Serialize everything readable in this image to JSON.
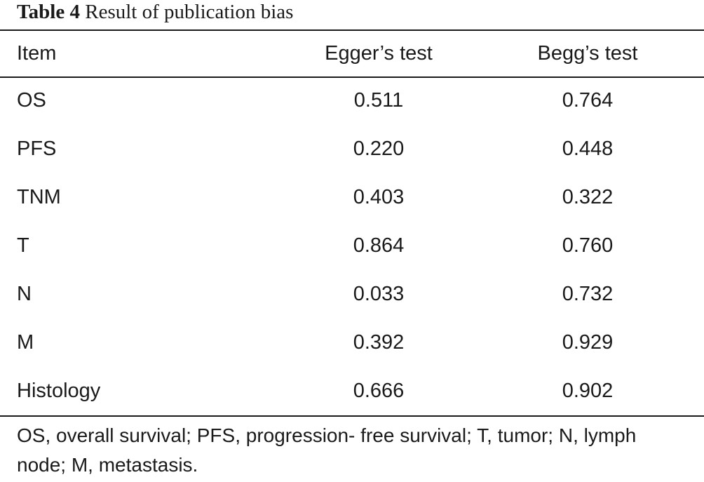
{
  "caption": {
    "label": "Table 4",
    "text": "Result of publication bias"
  },
  "table": {
    "headers": [
      "Item",
      "Egger’s test",
      "Begg’s test"
    ],
    "rows": [
      [
        "OS",
        "0.511",
        "0.764"
      ],
      [
        "PFS",
        "0.220",
        "0.448"
      ],
      [
        "TNM",
        "0.403",
        "0.322"
      ],
      [
        "T",
        "0.864",
        "0.760"
      ],
      [
        "N",
        "0.033",
        "0.732"
      ],
      [
        "M",
        "0.392",
        "0.929"
      ],
      [
        "Histology",
        "0.666",
        "0.902"
      ]
    ]
  },
  "footnote": "OS, overall survival; PFS, progression- free survival; T, tumor; N, lymph node; M, metastasis."
}
